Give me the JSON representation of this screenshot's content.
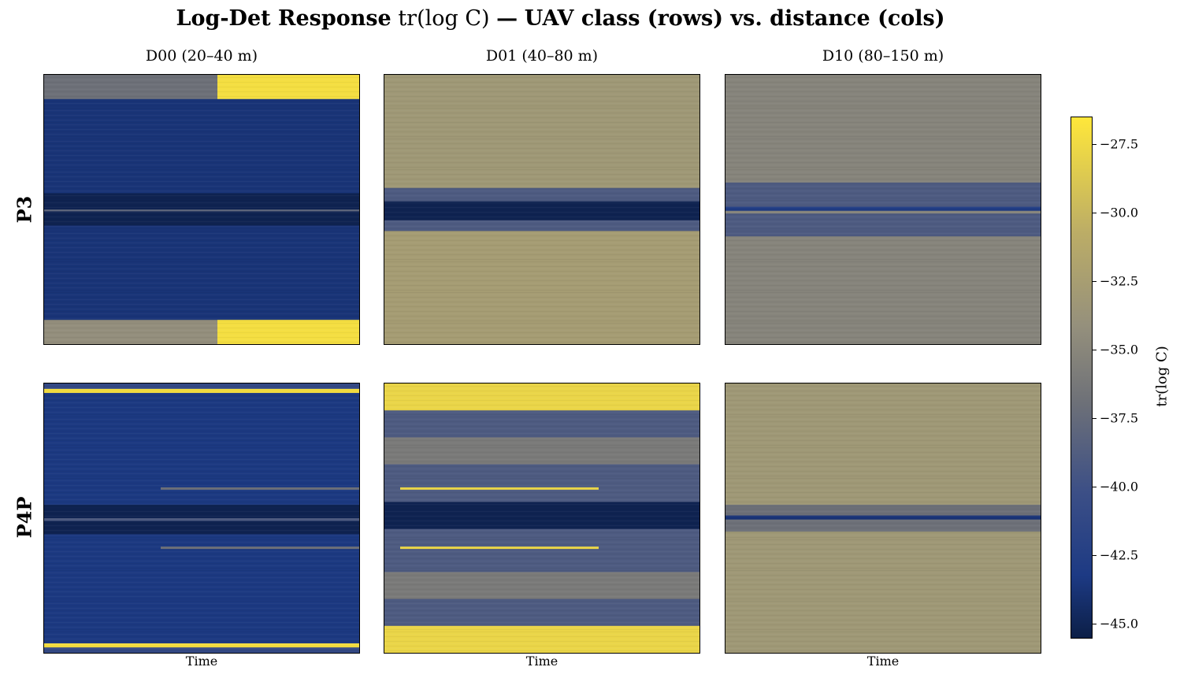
{
  "figure": {
    "title_bold_1": "Log-Det Response",
    "title_math": "tr(log C)",
    "title_dash": "—",
    "title_bold_2": "UAV class (rows) vs. distance (cols)"
  },
  "chart_data": {
    "type": "heatmap",
    "columns": [
      "D00 (20–40 m)",
      "D01 (40–80 m)",
      "D10 (80–150 m)"
    ],
    "rows": [
      "P3",
      "P4P"
    ],
    "xlabel": "Time",
    "colorbar": {
      "label": "tr(log C)",
      "range": [
        -45.5,
        -26.5
      ],
      "ticks": [
        -27.5,
        -30.0,
        -32.5,
        -35.0,
        -37.5,
        -40.0,
        -42.5,
        -45.0
      ],
      "tick_labels": [
        "−27.5",
        "−30.0",
        "−32.5",
        "−35.0",
        "−37.5",
        "−40.0",
        "−42.5",
        "−45.0"
      ],
      "colormap": [
        "#0c1f47",
        "#1d3a84",
        "#3c4f86",
        "#6d7078",
        "#95907c",
        "#bcad66",
        "#ffe73a"
      ]
    },
    "panels": [
      {
        "row": "P3",
        "col": "D00 (20–40 m)",
        "bands": [
          {
            "y0": 0,
            "y1": 0.09,
            "value": -36,
            "right_value": -27
          },
          {
            "y0": 0.09,
            "y1": 0.44,
            "value": -43
          },
          {
            "y0": 0.44,
            "y1": 0.5,
            "value": -45
          },
          {
            "y0": 0.5,
            "y1": 0.507,
            "value": -37
          },
          {
            "y0": 0.507,
            "y1": 0.56,
            "value": -45
          },
          {
            "y0": 0.56,
            "y1": 0.91,
            "value": -43
          },
          {
            "y0": 0.91,
            "y1": 1,
            "value": -33,
            "right_value": -27
          }
        ]
      },
      {
        "row": "P3",
        "col": "D01 (40–80 m)",
        "bands": [
          {
            "y0": 0,
            "y1": 0.42,
            "value": -32
          },
          {
            "y0": 0.42,
            "y1": 0.47,
            "value": -38
          },
          {
            "y0": 0.47,
            "y1": 0.54,
            "value": -45
          },
          {
            "y0": 0.54,
            "y1": 0.58,
            "value": -38
          },
          {
            "y0": 0.58,
            "y1": 1,
            "value": -31.5
          }
        ]
      },
      {
        "row": "P3",
        "col": "D10 (80–150 m)",
        "bands": [
          {
            "y0": 0,
            "y1": 0.4,
            "value": -34
          },
          {
            "y0": 0.4,
            "y1": 0.49,
            "value": -38
          },
          {
            "y0": 0.49,
            "y1": 0.505,
            "value": -42
          },
          {
            "y0": 0.505,
            "y1": 0.515,
            "value": -34
          },
          {
            "y0": 0.515,
            "y1": 0.6,
            "value": -38
          },
          {
            "y0": 0.6,
            "y1": 1,
            "value": -34
          }
        ]
      },
      {
        "row": "P4P",
        "col": "D00 (20–40 m)",
        "bands": [
          {
            "y0": 0,
            "y1": 0.02,
            "value": -40
          },
          {
            "y0": 0.02,
            "y1": 0.035,
            "value": -27
          },
          {
            "y0": 0.035,
            "y1": 0.45,
            "value": -42.5
          },
          {
            "y0": 0.45,
            "y1": 0.5,
            "value": -45
          },
          {
            "y0": 0.5,
            "y1": 0.51,
            "value": -38
          },
          {
            "y0": 0.51,
            "y1": 0.56,
            "value": -45
          },
          {
            "y0": 0.56,
            "y1": 0.965,
            "value": -42.5
          },
          {
            "y0": 0.965,
            "y1": 0.98,
            "value": -27
          },
          {
            "y0": 0.98,
            "y1": 1,
            "value": -40
          }
        ],
        "streaks": [
          {
            "y": 0.39,
            "x0": 0.37,
            "x1": 1,
            "value": -36
          },
          {
            "y": 0.61,
            "x0": 0.37,
            "x1": 1,
            "value": -36
          }
        ]
      },
      {
        "row": "P4P",
        "col": "D01 (40–80 m)",
        "bands": [
          {
            "y0": 0,
            "y1": 0.1,
            "value": -27.5
          },
          {
            "y0": 0.1,
            "y1": 0.2,
            "value": -38
          },
          {
            "y0": 0.2,
            "y1": 0.3,
            "value": -35
          },
          {
            "y0": 0.3,
            "y1": 0.44,
            "value": -38
          },
          {
            "y0": 0.44,
            "y1": 0.54,
            "value": -45
          },
          {
            "y0": 0.54,
            "y1": 0.7,
            "value": -38
          },
          {
            "y0": 0.7,
            "y1": 0.8,
            "value": -35
          },
          {
            "y0": 0.8,
            "y1": 0.9,
            "value": -38
          },
          {
            "y0": 0.9,
            "y1": 1,
            "value": -27.5
          }
        ],
        "streaks": [
          {
            "y": 0.39,
            "x0": 0.05,
            "x1": 0.68,
            "value": -27.5
          },
          {
            "y": 0.61,
            "x0": 0.05,
            "x1": 0.68,
            "value": -27.5
          }
        ]
      },
      {
        "row": "P4P",
        "col": "D10 (80–150 m)",
        "bands": [
          {
            "y0": 0,
            "y1": 0.45,
            "value": -32
          },
          {
            "y0": 0.45,
            "y1": 0.49,
            "value": -36
          },
          {
            "y0": 0.49,
            "y1": 0.505,
            "value": -43
          },
          {
            "y0": 0.505,
            "y1": 0.55,
            "value": -36
          },
          {
            "y0": 0.55,
            "y1": 1,
            "value": -32
          }
        ]
      }
    ]
  }
}
